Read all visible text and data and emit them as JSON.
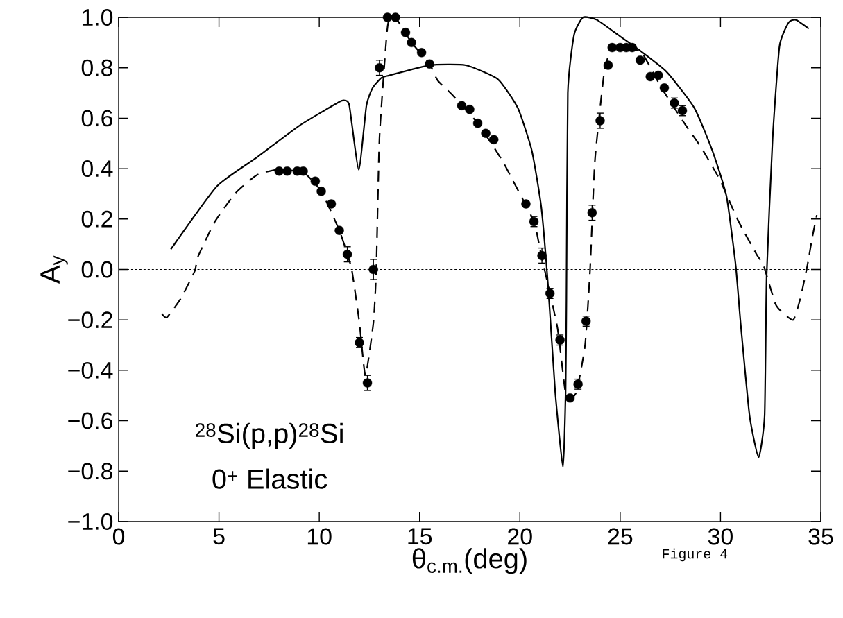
{
  "chart_data": {
    "type": "line",
    "xlabel": "θ$_{c.m.}$(deg)",
    "ylabel": "A$_{y}$",
    "annotations": [
      "$^{28}$Si(p,p)$^{28}$Si",
      "0$^{+}$ Elastic",
      "Figure 4"
    ],
    "xlim": [
      0,
      35
    ],
    "ylim": [
      -1.0,
      1.0
    ],
    "xticks": [
      0,
      5,
      10,
      15,
      20,
      25,
      30,
      35
    ],
    "yticks": [
      {
        "value": -1.0,
        "label": "−1.0"
      },
      {
        "value": -0.8,
        "label": "−0.8"
      },
      {
        "value": -0.6,
        "label": "−0.6"
      },
      {
        "value": -0.4,
        "label": "−0.4"
      },
      {
        "value": -0.2,
        "label": "−0.2"
      },
      {
        "value": 0,
        "label": "0.0"
      },
      {
        "value": 0.2,
        "label": "0.2"
      },
      {
        "value": 0.4,
        "label": "0.4"
      },
      {
        "value": 0.6,
        "label": "0.6"
      },
      {
        "value": 0.8,
        "label": "0.8"
      },
      {
        "value": 1.0,
        "label": "1.0"
      }
    ],
    "ref_lines": [
      {
        "axis": "y",
        "value": 0,
        "line_style": "dashed",
        "color": "#000000"
      }
    ],
    "series": [
      {
        "type": "scatter",
        "marker": "circle",
        "color": "#000000",
        "x": [
          8.0,
          8.4,
          8.9,
          9.2,
          9.8,
          10.1,
          10.6,
          11.0,
          11.4,
          12.0,
          12.4,
          12.7,
          13.0,
          13.4,
          13.8,
          14.3,
          14.6,
          15.1,
          15.5,
          17.1,
          17.5,
          17.9,
          18.3,
          18.7,
          20.3,
          20.7,
          21.1,
          21.5,
          22.0,
          22.5,
          22.9,
          23.3,
          23.6,
          24.0,
          24.4,
          24.6,
          25.0,
          25.3,
          25.6,
          26.0,
          26.5,
          26.9,
          27.2,
          27.7,
          28.1
        ],
        "values": [
          0.39,
          0.39,
          0.39,
          0.39,
          0.35,
          0.31,
          0.26,
          0.155,
          0.06,
          -0.29,
          -0.45,
          0.0,
          0.8,
          1.0,
          1.0,
          0.94,
          0.9,
          0.86,
          0.815,
          0.65,
          0.635,
          0.58,
          0.54,
          0.515,
          0.26,
          0.19,
          0.055,
          -0.095,
          -0.28,
          -0.51,
          -0.455,
          -0.205,
          0.225,
          0.59,
          0.81,
          0.88,
          0.88,
          0.88,
          0.88,
          0.83,
          0.765,
          0.77,
          0.72,
          0.66,
          0.63
        ],
        "errors": [
          null,
          null,
          null,
          null,
          null,
          null,
          null,
          null,
          0.03,
          0.02,
          0.03,
          0.04,
          0.03,
          null,
          null,
          null,
          null,
          null,
          null,
          null,
          null,
          null,
          null,
          null,
          null,
          0.02,
          0.03,
          0.02,
          0.02,
          null,
          0.02,
          0.02,
          0.03,
          0.03,
          null,
          null,
          null,
          null,
          null,
          null,
          null,
          null,
          null,
          0.02,
          0.02
        ]
      },
      {
        "marker": "none",
        "line_style": "solid",
        "color": "#000000",
        "x": [
          2.6,
          4.9,
          6.9,
          9.0,
          11.0,
          11.3,
          11.5,
          11.97,
          12.35,
          12.66,
          13.1,
          13.5,
          15.5,
          17.3,
          18.9,
          19.9,
          20.6,
          21.07,
          21.42,
          21.76,
          22.15,
          22.28,
          22.32,
          22.39,
          22.7,
          23.15,
          23.84,
          24.9,
          25.7,
          27.3,
          28.7,
          29.6,
          30.3,
          30.76,
          31.0,
          31.45,
          31.9,
          32.2,
          32.3,
          32.6,
          32.94,
          33.4,
          33.76,
          34.4
        ],
        "values": [
          0.08,
          0.33,
          0.445,
          0.57,
          0.665,
          0.67,
          0.65,
          0.395,
          0.65,
          0.72,
          0.76,
          0.77,
          0.81,
          0.81,
          0.755,
          0.64,
          0.47,
          0.245,
          -0.08,
          -0.485,
          -0.785,
          -0.485,
          -0.115,
          0.7,
          0.93,
          1.0,
          0.99,
          0.93,
          0.885,
          0.785,
          0.64,
          0.47,
          0.29,
          0.015,
          -0.21,
          -0.58,
          -0.745,
          -0.58,
          -0.025,
          0.52,
          0.885,
          0.98,
          0.99,
          0.955
        ]
      },
      {
        "marker": "none",
        "line_style": "dashed",
        "color": "#000000",
        "x": [
          2.15,
          2.4,
          3.1,
          3.8,
          3.95,
          4.8,
          5.85,
          6.9,
          7.9,
          9.2,
          10.1,
          11.0,
          11.4,
          11.63,
          12.0,
          12.3,
          12.7,
          12.84,
          13.0,
          13.36,
          13.5,
          13.8,
          14.6,
          15.5,
          15.9,
          16.6,
          17.9,
          19.1,
          19.7,
          20.7,
          21.07,
          21.87,
          22.3,
          22.8,
          23.25,
          23.5,
          23.74,
          24.2,
          24.53,
          25.0,
          25.6,
          26.16,
          27.06,
          28.24,
          29.03,
          29.97,
          30.87,
          31.8,
          32.15,
          32.73,
          33.08,
          33.63,
          33.98,
          34.33,
          34.57,
          34.8
        ],
        "values": [
          -0.175,
          -0.19,
          -0.115,
          -0.005,
          0.05,
          0.19,
          0.305,
          0.375,
          0.395,
          0.385,
          0.31,
          0.155,
          0.06,
          -0.005,
          -0.21,
          -0.42,
          -0.21,
          -0.005,
          0.52,
          0.93,
          1.0,
          1.0,
          0.9,
          0.815,
          0.75,
          0.695,
          0.58,
          0.435,
          0.345,
          0.19,
          0.055,
          -0.23,
          -0.5,
          -0.49,
          -0.3,
          0.0,
          0.43,
          0.78,
          0.87,
          0.885,
          0.88,
          0.85,
          0.72,
          0.575,
          0.485,
          0.355,
          0.195,
          0.06,
          0.015,
          -0.135,
          -0.17,
          -0.2,
          -0.115,
          0.015,
          0.125,
          0.215
        ]
      }
    ]
  }
}
